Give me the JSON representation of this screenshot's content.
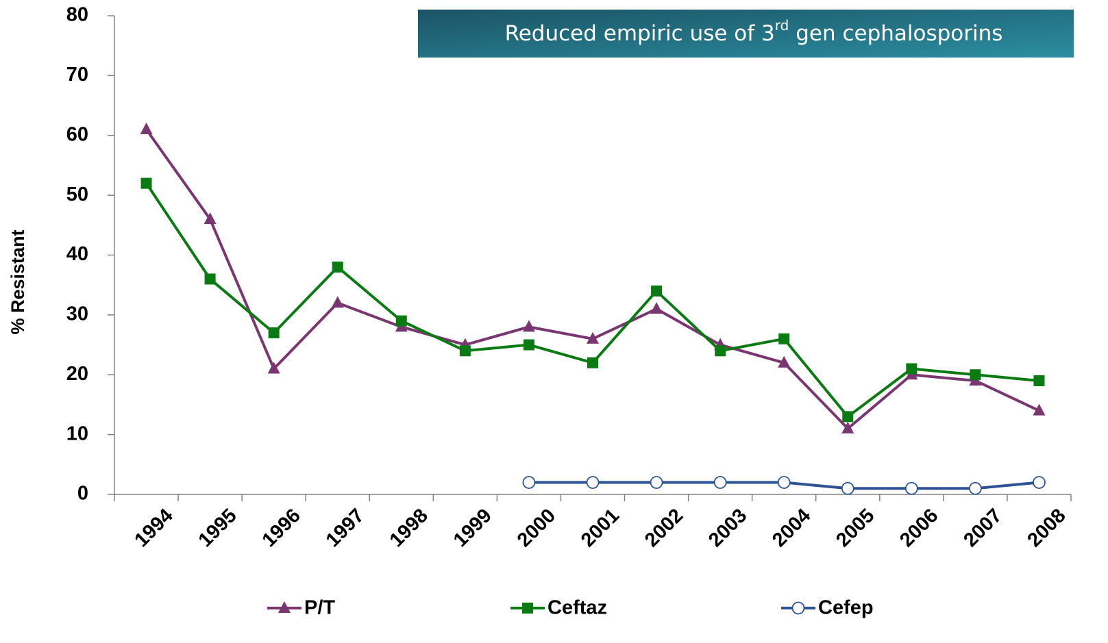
{
  "chart_data": {
    "type": "line",
    "y_label": "% Resistant",
    "annotation": {
      "parts": [
        "Reduced empiric use of 3",
        "rd",
        " gen cephalosporins"
      ]
    },
    "categories": [
      "1994",
      "1995",
      "1996",
      "1997",
      "1998",
      "1999",
      "2000",
      "2001",
      "2002",
      "2003",
      "2004",
      "2005",
      "2006",
      "2007",
      "2008"
    ],
    "series": [
      {
        "name": "P/T",
        "color": "#7a3670",
        "marker": "triangle",
        "values": [
          61,
          46,
          21,
          32,
          28,
          25,
          28,
          26,
          31,
          25,
          22,
          11,
          20,
          19,
          14
        ]
      },
      {
        "name": "Ceftaz",
        "color": "#0a7a12",
        "marker": "square",
        "values": [
          52,
          36,
          27,
          38,
          29,
          24,
          25,
          22,
          34,
          24,
          26,
          13,
          21,
          20,
          19
        ]
      },
      {
        "name": "Cefep",
        "color": "#2e5394",
        "marker": "open-circle",
        "values": [
          null,
          null,
          null,
          null,
          null,
          null,
          2,
          2,
          2,
          2,
          2,
          1,
          1,
          1,
          2
        ]
      }
    ],
    "ylim": [
      0,
      80
    ],
    "yticks": [
      0,
      10,
      20,
      30,
      40,
      50,
      60,
      70,
      80
    ],
    "grid": false,
    "legend": "bottom"
  }
}
